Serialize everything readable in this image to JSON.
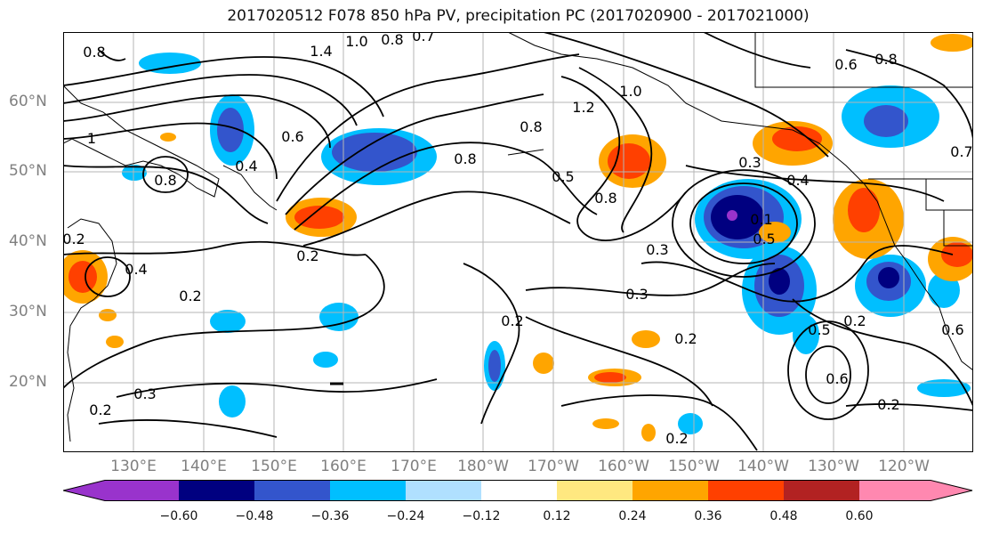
{
  "title": "2017020512 F078 850 hPa PV, precipitation PC (2017020900 - 2017021000)",
  "lat_labels": [
    "60°N",
    "50°N",
    "40°N",
    "30°N",
    "20°N"
  ],
  "lon_labels": [
    "130°E",
    "140°E",
    "150°E",
    "160°E",
    "170°E",
    "180°W",
    "170°W",
    "160°W",
    "150°W",
    "140°W",
    "130°W",
    "120°W"
  ],
  "contour_labels": [
    "1.4",
    "1.0",
    "0.8",
    "0.7",
    "0.8",
    "0.6",
    "0.8",
    "1.2",
    "1.0",
    "0.8",
    "0.6",
    "0.4",
    "1",
    "0.8",
    "0.8",
    "0.5",
    "0.8",
    "0.3",
    "0.4",
    "0.1",
    "0.5",
    "0.7",
    "0.2",
    "0.3",
    "0.2",
    "0.4",
    "0.2",
    "0.3",
    "0.2",
    "0.2",
    "0.3",
    "0.2",
    "0.5",
    "0.6",
    "0.2",
    "0.2",
    "0.6",
    "0.2"
  ],
  "colorbar": {
    "colors": [
      "#9933cc",
      "#000080",
      "#3355cc",
      "#00bfff",
      "#b0e0ff",
      "#ffffff",
      "#ffe880",
      "#ffa500",
      "#ff4000",
      "#b22222",
      "#ff88b0"
    ],
    "tick_labels": [
      "−0.60",
      "−0.48",
      "−0.36",
      "−0.24",
      "−0.12",
      "0.12",
      "0.24",
      "0.36",
      "0.48",
      "0.60"
    ]
  }
}
